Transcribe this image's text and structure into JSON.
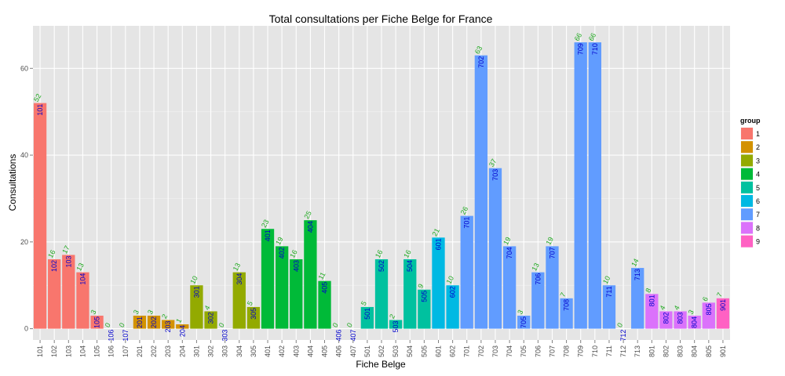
{
  "chart_data": {
    "type": "bar",
    "title": "Total consultations per Fiche Belge for France",
    "xlabel": "Fiche Belge",
    "ylabel": "Consultations",
    "ylim": [
      0,
      70
    ],
    "yticks": [
      0,
      20,
      40,
      60
    ],
    "grid": true,
    "legend": {
      "title": "group",
      "position": "right",
      "entries": [
        {
          "name": "1",
          "color": "#F8766D"
        },
        {
          "name": "2",
          "color": "#D39200"
        },
        {
          "name": "3",
          "color": "#93AA00"
        },
        {
          "name": "4",
          "color": "#00BA38"
        },
        {
          "name": "5",
          "color": "#00C19F"
        },
        {
          "name": "6",
          "color": "#00B9E3"
        },
        {
          "name": "7",
          "color": "#619CFF"
        },
        {
          "name": "8",
          "color": "#DB72FB"
        },
        {
          "name": "9",
          "color": "#FF61C3"
        }
      ]
    },
    "categories": [
      "101",
      "102",
      "103",
      "104",
      "105",
      "106",
      "107",
      "201",
      "202",
      "203",
      "204",
      "301",
      "302",
      "303",
      "304",
      "305",
      "401",
      "402",
      "403",
      "404",
      "405",
      "406",
      "407",
      "501",
      "502",
      "503",
      "504",
      "505",
      "601",
      "602",
      "701",
      "702",
      "703",
      "704",
      "705",
      "706",
      "707",
      "708",
      "709",
      "710",
      "711",
      "712",
      "713",
      "801",
      "802",
      "803",
      "804",
      "805",
      "901"
    ],
    "values": [
      52,
      16,
      17,
      13,
      3,
      0,
      0,
      3,
      3,
      2,
      1,
      10,
      4,
      0,
      13,
      5,
      23,
      19,
      16,
      25,
      11,
      0,
      0,
      5,
      16,
      2,
      16,
      9,
      21,
      10,
      26,
      63,
      37,
      19,
      3,
      13,
      19,
      7,
      66,
      66,
      10,
      0,
      14,
      8,
      4,
      4,
      3,
      6,
      7
    ],
    "groups": [
      "1",
      "1",
      "1",
      "1",
      "1",
      "1",
      "1",
      "2",
      "2",
      "2",
      "2",
      "3",
      "3",
      "3",
      "3",
      "3",
      "4",
      "4",
      "4",
      "4",
      "4",
      "4",
      "4",
      "5",
      "5",
      "5",
      "5",
      "5",
      "6",
      "6",
      "7",
      "7",
      "7",
      "7",
      "7",
      "7",
      "7",
      "7",
      "7",
      "7",
      "7",
      "7",
      "7",
      "8",
      "8",
      "8",
      "8",
      "8",
      "9"
    ]
  }
}
